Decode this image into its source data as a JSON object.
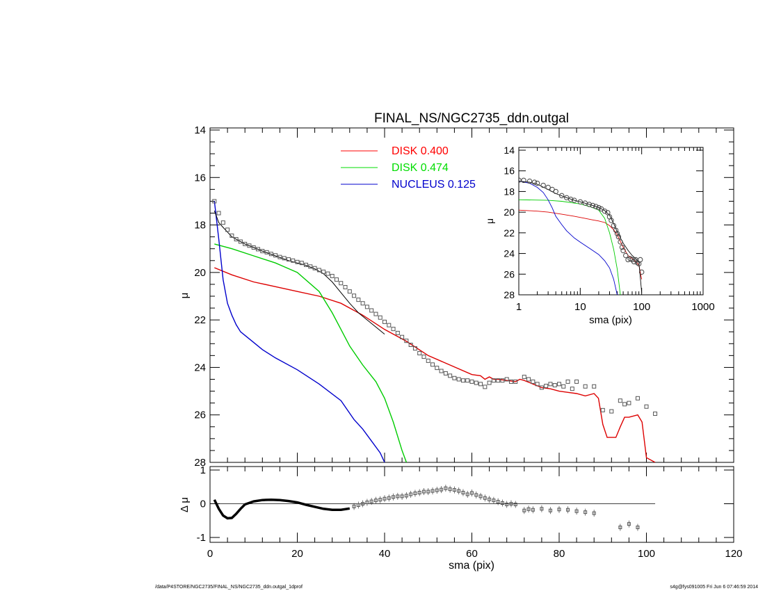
{
  "page": {
    "footer_left": "/data/P4STORE/NGC2735/FINAL_NS/NGC2735_ddn.outgal_1dprof",
    "footer_right": "s4g@fys091005  Fri Jun  6 07:46:59 2014"
  },
  "chart_data": [
    {
      "id": "main",
      "type": "line",
      "title": "FINAL_NS/NGC2735_ddn.outgal",
      "xlabel": "",
      "ylabel": "μ",
      "xlim": [
        0,
        120
      ],
      "ylim": [
        28,
        14
      ],
      "y_inverted": true,
      "yticks": [
        14,
        16,
        18,
        20,
        22,
        24,
        26,
        28
      ],
      "xticks": [
        0,
        20,
        40,
        60,
        80,
        100,
        120
      ],
      "legend_position": "top-center",
      "legend": [
        {
          "line": "disk1",
          "label": "DISK  0.400",
          "color": "#ff0000"
        },
        {
          "line": "disk2",
          "label": "DISK  0.474",
          "color": "#00dd00"
        },
        {
          "line": "nucleus",
          "label": "NUCLEUS  0.125",
          "color": "#0000cc"
        }
      ],
      "series": [
        {
          "key": "disk1",
          "color": "#dd0000",
          "x": [
            1,
            5,
            10,
            15,
            20,
            25,
            30,
            35,
            40,
            45,
            50,
            55,
            60,
            62,
            63,
            64,
            65,
            66,
            68,
            70,
            71,
            72,
            74,
            76,
            78,
            80,
            82,
            84,
            86,
            88,
            89,
            90,
            91,
            92,
            93,
            94,
            95,
            96,
            98,
            99,
            100,
            102
          ],
          "y": [
            19.8,
            20.1,
            20.4,
            20.6,
            20.8,
            21.0,
            21.3,
            21.8,
            22.4,
            22.9,
            23.5,
            23.9,
            24.3,
            24.35,
            24.5,
            24.4,
            24.5,
            24.5,
            24.55,
            24.6,
            24.5,
            24.55,
            24.7,
            24.85,
            24.9,
            25.0,
            25.05,
            25.1,
            25.2,
            25.1,
            25.3,
            26.4,
            26.95,
            26.95,
            26.95,
            26.5,
            26.1,
            26.1,
            26.0,
            26.3,
            27.8,
            28.0
          ]
        },
        {
          "key": "disk2",
          "color": "#00cc00",
          "x": [
            1,
            5,
            10,
            15,
            20,
            25,
            28,
            30,
            32,
            35,
            38,
            40,
            42,
            44,
            45
          ],
          "y": [
            18.8,
            19.0,
            19.3,
            19.6,
            20.0,
            20.8,
            21.7,
            22.4,
            23.1,
            23.9,
            24.6,
            25.3,
            26.3,
            27.5,
            28.0
          ]
        },
        {
          "key": "nucleus",
          "color": "#0000cc",
          "x": [
            1,
            2,
            3,
            4,
            5,
            6,
            7,
            8,
            10,
            12,
            15,
            20,
            25,
            30,
            33,
            35,
            37,
            39,
            40
          ],
          "y": [
            17.0,
            18.6,
            20.3,
            21.3,
            21.8,
            22.2,
            22.5,
            22.65,
            22.95,
            23.25,
            23.6,
            24.1,
            24.7,
            25.4,
            26.2,
            26.6,
            27.1,
            27.6,
            28.0
          ]
        },
        {
          "key": "model",
          "color": "#000000",
          "x": [
            1,
            2,
            3,
            4,
            5,
            6,
            8,
            10,
            12,
            15,
            18,
            20,
            22,
            24,
            26,
            28,
            30,
            32,
            34,
            36,
            38,
            40
          ],
          "y": [
            17.4,
            17.9,
            18.1,
            18.3,
            18.5,
            18.6,
            18.8,
            18.95,
            19.1,
            19.3,
            19.5,
            19.6,
            19.7,
            19.85,
            20.05,
            20.4,
            20.85,
            21.3,
            21.7,
            22.0,
            22.3,
            22.6
          ]
        },
        {
          "key": "obs",
          "color": "#555555",
          "x": [
            1,
            2,
            3,
            4,
            5,
            6,
            7,
            8,
            9,
            10,
            11,
            12,
            13,
            14,
            15,
            16,
            17,
            18,
            19,
            20,
            21,
            22,
            23,
            24,
            25,
            26,
            27,
            28,
            29,
            30,
            31,
            32,
            33,
            34,
            35,
            36,
            37,
            38,
            39,
            40,
            41,
            42,
            43,
            44,
            45,
            46,
            47,
            48,
            49,
            50,
            51,
            52,
            53,
            54,
            55,
            56,
            57,
            58,
            59,
            60,
            61,
            62,
            63,
            64,
            65,
            66,
            67,
            68,
            69,
            70,
            72,
            73,
            74,
            75,
            76,
            77,
            78,
            79,
            80,
            81,
            82,
            83,
            84,
            86,
            88,
            90,
            92,
            94,
            95,
            96,
            98,
            100,
            102
          ],
          "y": [
            17.0,
            17.5,
            17.9,
            18.2,
            18.45,
            18.6,
            18.7,
            18.8,
            18.87,
            18.95,
            19.02,
            19.1,
            19.15,
            19.22,
            19.28,
            19.35,
            19.4,
            19.45,
            19.5,
            19.56,
            19.6,
            19.68,
            19.75,
            19.82,
            19.9,
            19.97,
            20.05,
            20.15,
            20.3,
            20.45,
            20.62,
            20.8,
            20.98,
            21.15,
            21.3,
            21.45,
            21.6,
            21.75,
            21.9,
            22.08,
            22.22,
            22.38,
            22.55,
            22.72,
            22.88,
            23.05,
            23.2,
            23.4,
            23.55,
            23.72,
            23.88,
            24.02,
            24.15,
            24.25,
            24.35,
            24.45,
            24.5,
            24.55,
            24.55,
            24.6,
            24.65,
            24.7,
            24.82,
            24.65,
            24.55,
            24.55,
            24.55,
            24.5,
            24.6,
            24.6,
            24.4,
            24.5,
            24.6,
            24.7,
            24.85,
            24.78,
            24.7,
            24.75,
            24.7,
            24.8,
            24.6,
            24.9,
            24.6,
            24.8,
            24.8,
            25.8,
            25.85,
            25.4,
            25.55,
            25.5,
            25.3,
            25.65,
            25.95
          ]
        }
      ]
    },
    {
      "id": "inset",
      "type": "line",
      "title": "",
      "xlabel": "sma (pix)",
      "ylabel": "μ",
      "x_scale": "log",
      "xlim": [
        1,
        1000
      ],
      "ylim": [
        28,
        14
      ],
      "y_inverted": true,
      "yticks": [
        14,
        16,
        18,
        20,
        22,
        24,
        26,
        28
      ],
      "xticks": [
        1,
        10,
        100,
        1000
      ],
      "series": [
        {
          "key": "disk1",
          "color": "#dd0000",
          "x": [
            1,
            2,
            3,
            5,
            8,
            12,
            16,
            20,
            25,
            30,
            35,
            40,
            50,
            60,
            70,
            80,
            90,
            100
          ],
          "y": [
            19.8,
            19.9,
            20.0,
            20.2,
            20.4,
            20.6,
            20.75,
            20.85,
            21.0,
            21.3,
            21.7,
            22.2,
            23.4,
            24.2,
            24.5,
            24.8,
            25.1,
            26.5
          ]
        },
        {
          "key": "disk2",
          "color": "#00cc00",
          "x": [
            1,
            3,
            5,
            10,
            15,
            20,
            25,
            30,
            35,
            40,
            45
          ],
          "y": [
            18.8,
            18.85,
            18.95,
            19.2,
            19.5,
            19.8,
            20.6,
            22.0,
            23.6,
            25.5,
            28.0
          ]
        },
        {
          "key": "nucleus",
          "color": "#0000cc",
          "x": [
            1,
            1.5,
            2,
            2.5,
            3,
            3.5,
            4,
            5,
            6,
            8,
            10,
            15,
            20,
            25,
            30,
            35,
            40
          ],
          "y": [
            17.0,
            17.2,
            17.6,
            18.1,
            18.8,
            19.6,
            20.4,
            21.2,
            21.8,
            22.5,
            22.9,
            23.6,
            24.1,
            24.7,
            25.4,
            26.5,
            28.0
          ]
        },
        {
          "key": "model",
          "color": "#000000",
          "x": [
            1,
            1.5,
            2,
            3,
            4,
            6,
            8,
            10,
            15,
            20,
            25,
            30,
            35,
            40,
            50,
            60,
            70,
            80,
            90,
            100
          ],
          "y": [
            17.0,
            17.1,
            17.3,
            17.8,
            18.2,
            18.6,
            18.85,
            19.0,
            19.3,
            19.55,
            19.85,
            20.3,
            21.1,
            21.9,
            23.0,
            23.7,
            24.2,
            24.5,
            24.8,
            27.8
          ]
        },
        {
          "key": "obs",
          "color": "#444444",
          "x": [
            1,
            1.2,
            1.5,
            1.8,
            2,
            2.5,
            3,
            3.5,
            4,
            5,
            6,
            7,
            8,
            10,
            12,
            14,
            16,
            18,
            20,
            22,
            25,
            28,
            30,
            32,
            35,
            38,
            40,
            42,
            45,
            48,
            50,
            55,
            60,
            65,
            70,
            75,
            80,
            85,
            90,
            95,
            100
          ],
          "y": [
            16.9,
            16.92,
            17.0,
            17.1,
            17.2,
            17.4,
            17.6,
            17.8,
            18.0,
            18.4,
            18.6,
            18.75,
            18.85,
            19.0,
            19.12,
            19.25,
            19.35,
            19.45,
            19.56,
            19.68,
            19.9,
            20.05,
            20.45,
            20.8,
            21.3,
            21.75,
            22.08,
            22.38,
            22.88,
            23.4,
            23.72,
            24.2,
            24.6,
            24.5,
            24.6,
            24.8,
            24.6,
            24.9,
            25.0,
            24.6,
            25.8
          ]
        }
      ]
    },
    {
      "id": "residual",
      "type": "scatter",
      "title": "",
      "xlabel": "sma (pix)",
      "ylabel": "Δ μ",
      "xlim": [
        0,
        120
      ],
      "ylim": [
        -1.1,
        1.0
      ],
      "yticks": [
        -1,
        0,
        1
      ],
      "xticks": [
        0,
        20,
        40,
        60,
        80,
        100,
        120
      ],
      "xtick_labels": [
        "0",
        "20",
        "40",
        "60",
        "80",
        "100",
        "120"
      ],
      "zero_line_x": [
        0,
        102
      ],
      "series": [
        {
          "key": "residual_curve",
          "color": "#000000",
          "x": [
            1,
            2,
            3,
            4,
            5,
            6,
            7,
            8,
            10,
            12,
            14,
            16,
            18,
            20,
            22,
            24,
            26,
            28,
            30,
            32
          ],
          "y": [
            0.12,
            -0.15,
            -0.35,
            -0.43,
            -0.42,
            -0.3,
            -0.15,
            -0.02,
            0.07,
            0.11,
            0.12,
            0.11,
            0.08,
            0.04,
            -0.03,
            -0.09,
            -0.15,
            -0.18,
            -0.18,
            -0.14
          ]
        },
        {
          "key": "residual_points",
          "color": "#555555",
          "x": [
            33,
            34,
            35,
            36,
            37,
            38,
            39,
            40,
            41,
            42,
            43,
            44,
            45,
            46,
            47,
            48,
            49,
            50,
            51,
            52,
            53,
            54,
            55,
            56,
            57,
            58,
            59,
            60,
            61,
            62,
            63,
            64,
            65,
            66,
            67,
            68,
            69,
            70,
            72,
            73,
            74,
            76,
            78,
            80,
            82,
            84,
            86,
            88,
            94,
            96,
            98
          ],
          "y": [
            -0.08,
            -0.04,
            0.0,
            0.04,
            0.07,
            0.1,
            0.12,
            0.15,
            0.17,
            0.2,
            0.22,
            0.22,
            0.24,
            0.28,
            0.31,
            0.33,
            0.36,
            0.36,
            0.38,
            0.4,
            0.42,
            0.46,
            0.43,
            0.41,
            0.38,
            0.33,
            0.28,
            0.32,
            0.26,
            0.22,
            0.17,
            0.13,
            0.1,
            0.06,
            0.02,
            -0.02,
            0.0,
            -0.02,
            -0.2,
            -0.16,
            -0.18,
            -0.15,
            -0.2,
            -0.17,
            -0.18,
            -0.22,
            -0.25,
            -0.28,
            -0.7,
            -0.6,
            -0.7
          ]
        }
      ]
    }
  ]
}
